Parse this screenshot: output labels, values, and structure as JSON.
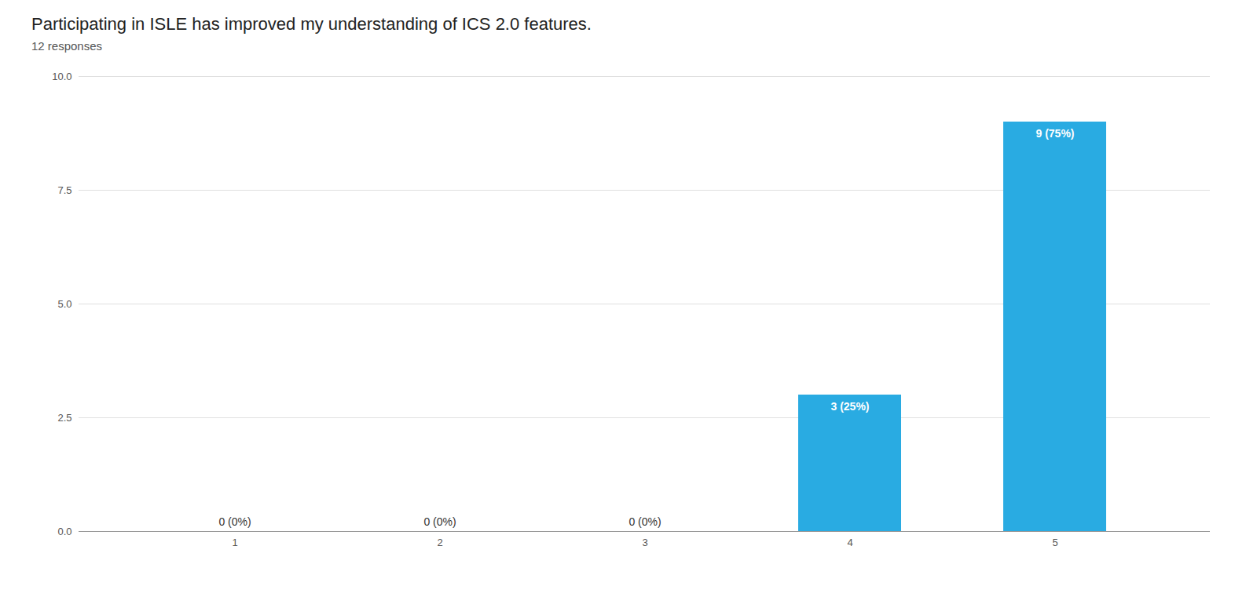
{
  "chart_data": {
    "type": "bar",
    "title": "Participating in ISLE has improved my understanding of ICS 2.0 features.",
    "subtitle": "12 responses",
    "categories": [
      1,
      2,
      3,
      4,
      5
    ],
    "values": [
      0,
      0,
      0,
      3,
      9
    ],
    "value_labels": [
      "0 (0%)",
      "0 (0%)",
      "0 (0%)",
      "3 (25%)",
      "9 (75%)"
    ],
    "data_labels": true,
    "color": "#29ABE2",
    "ylim": [
      0,
      10
    ],
    "yticks": [
      {
        "value": 0,
        "label": "0.0"
      },
      2.5,
      {
        "value": 5,
        "label": "5.0"
      },
      7.5,
      {
        "value": 10,
        "label": "10.0"
      }
    ],
    "grid": true
  }
}
